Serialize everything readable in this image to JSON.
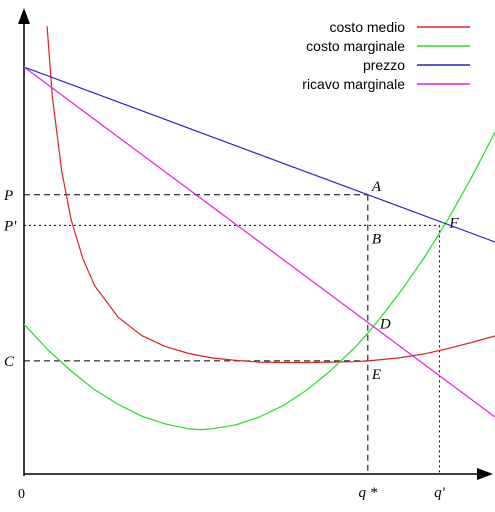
{
  "chart_data": {
    "type": "line",
    "title": "",
    "xlabel": "",
    "ylabel": "",
    "xlim": [
      0,
      10
    ],
    "ylim": [
      0,
      10
    ],
    "grid": false,
    "legend_position": "top-right",
    "origin_label": "0",
    "series": [
      {
        "name": "costo medio",
        "color": "#dd2222",
        "x": [
          0.49,
          0.6,
          0.8,
          1.0,
          1.25,
          1.5,
          2.0,
          2.5,
          3.0,
          3.5,
          4.0,
          4.5,
          5.0,
          5.5,
          6.0,
          6.5,
          7.0,
          7.3,
          7.5,
          8.0,
          8.5,
          9.0,
          9.5,
          10.0
        ],
        "y": [
          11.0,
          9.28,
          7.44,
          6.25,
          5.29,
          4.63,
          3.85,
          3.4,
          3.13,
          2.96,
          2.85,
          2.79,
          2.75,
          2.74,
          2.74,
          2.75,
          2.76,
          2.78,
          2.8,
          2.86,
          2.95,
          3.08,
          3.23,
          3.39
        ]
      },
      {
        "name": "costo marginale",
        "color": "#22dd22",
        "x": [
          0.0,
          0.5,
          1.0,
          1.5,
          2.0,
          2.5,
          3.0,
          3.5,
          3.75,
          4.0,
          4.5,
          5.0,
          5.5,
          6.0,
          6.5,
          7.0,
          7.3,
          7.5,
          8.0,
          8.5,
          9.0,
          9.5,
          10.0
        ],
        "y": [
          3.68,
          3.06,
          2.53,
          2.07,
          1.71,
          1.42,
          1.23,
          1.11,
          1.09,
          1.11,
          1.21,
          1.4,
          1.68,
          2.06,
          2.53,
          3.08,
          3.46,
          3.74,
          4.49,
          5.32,
          6.25,
          7.28,
          8.4
        ]
      },
      {
        "name": "prezzo",
        "color": "#2222cc",
        "x": [
          0,
          10
        ],
        "y": [
          10.0,
          5.7
        ]
      },
      {
        "name": "ricavo marginale",
        "color": "#dd22dd",
        "x": [
          0,
          10
        ],
        "y": [
          10.0,
          1.4
        ]
      }
    ],
    "y_ticks": [
      {
        "label": "P",
        "value": 6.86
      },
      {
        "label": "P'",
        "value": 6.11
      },
      {
        "label": "C",
        "value": 2.78
      }
    ],
    "x_ticks": [
      {
        "label": "q *",
        "value": 7.3
      },
      {
        "label": "q'",
        "value": 8.82
      }
    ],
    "points": [
      {
        "label": "A",
        "x": 7.3,
        "y": 6.86
      },
      {
        "label": "B",
        "x": 7.3,
        "y": 6.11
      },
      {
        "label": "D",
        "x": 7.3,
        "y": 3.72
      },
      {
        "label": "E",
        "x": 7.3,
        "y": 2.78
      },
      {
        "label": "F",
        "x": 8.82,
        "y": 6.11
      }
    ]
  }
}
